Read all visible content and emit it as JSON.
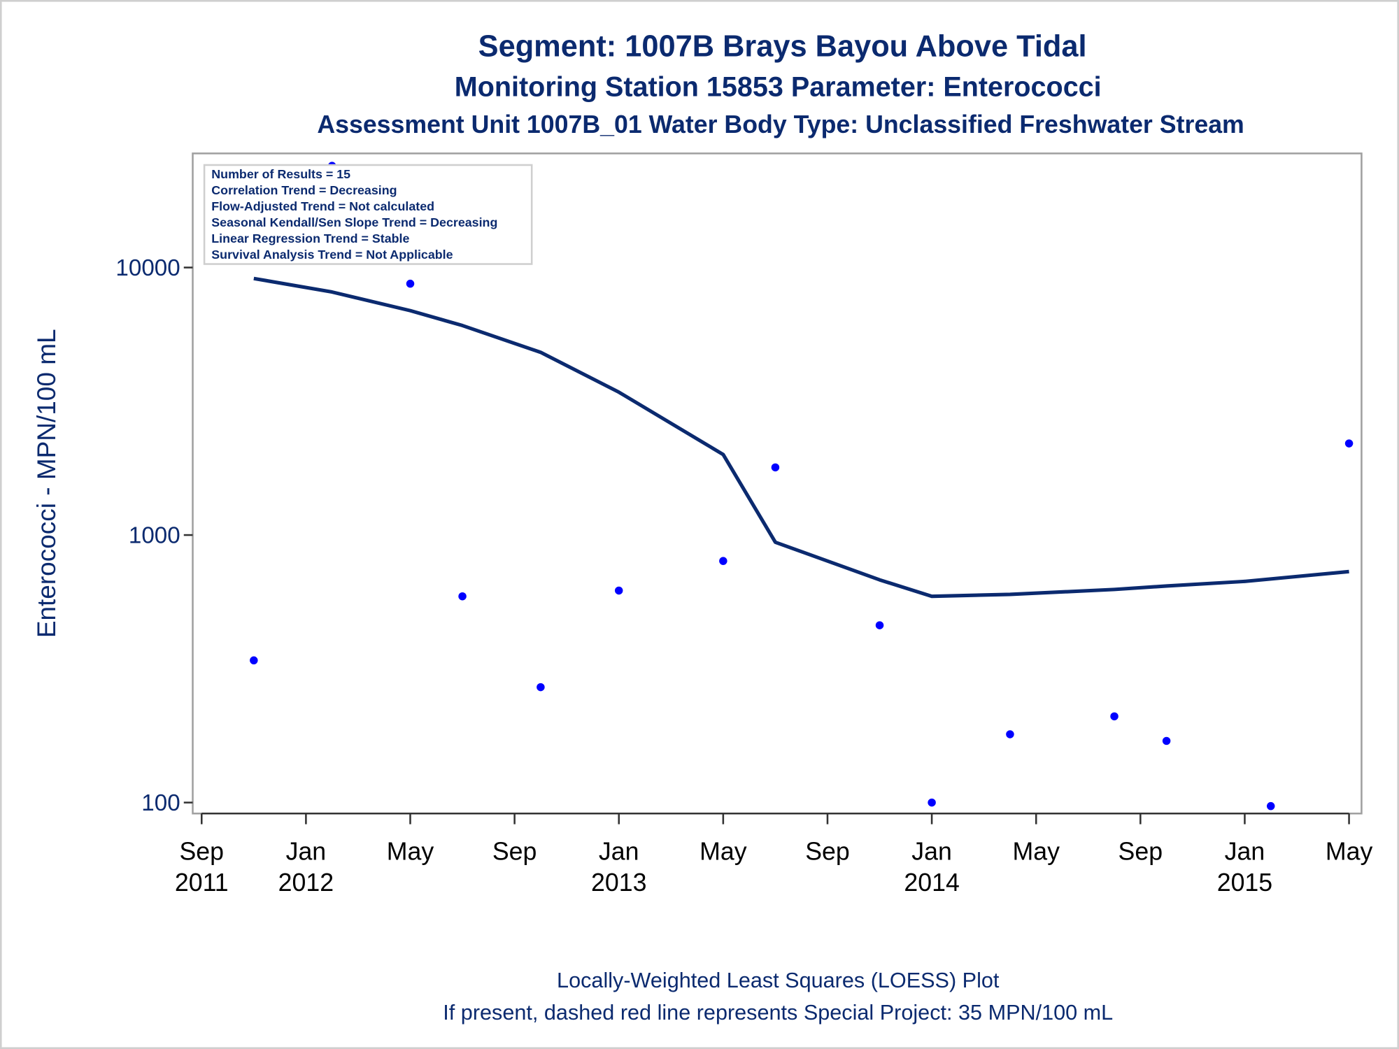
{
  "chart_data": {
    "type": "scatter",
    "title": "Segment: 1007B  Brays Bayou Above Tidal",
    "subtitle": "Monitoring Station 15853 Parameter: Enterococci",
    "subtitle2": "Assessment Unit 1007B_01   Water Body Type: Unclassified Freshwater Stream",
    "y_label": "Enterococci - MPN/100 mL",
    "footnotes": [
      "Locally-Weighted Least Squares (LOESS) Plot",
      "If present, dashed red line represents Special Project: 35 MPN/100 mL"
    ],
    "annotations": [
      "Number of Results = 15",
      "Correlation Trend = Decreasing",
      "Flow-Adjusted Trend = Not calculated",
      "Seasonal Kendall/Sen Slope Trend = Decreasing",
      "Linear Regression Trend = Stable",
      "Survival Analysis Trend = Not Applicable"
    ],
    "log_y": true,
    "ylim": [
      91,
      26700
    ],
    "yticks": [
      100,
      1000,
      10000
    ],
    "xlim": [
      "2011-09",
      "2015-05"
    ],
    "xticks": [
      {
        "value": "2011-09",
        "label": "Sep",
        "sublabel": "2011"
      },
      {
        "value": "2012-01",
        "label": "Jan",
        "sublabel": "2012"
      },
      {
        "value": "2012-05",
        "label": "May"
      },
      {
        "value": "2012-09",
        "label": "Sep"
      },
      {
        "value": "2013-01",
        "label": "Jan",
        "sublabel": "2013"
      },
      {
        "value": "2013-05",
        "label": "May"
      },
      {
        "value": "2013-09",
        "label": "Sep"
      },
      {
        "value": "2014-01",
        "label": "Jan",
        "sublabel": "2014"
      },
      {
        "value": "2014-05",
        "label": "May"
      },
      {
        "value": "2014-09",
        "label": "Sep"
      },
      {
        "value": "2015-01",
        "label": "Jan",
        "sublabel": "2015"
      },
      {
        "value": "2015-05",
        "label": "May"
      }
    ],
    "series": [
      {
        "type": "scatter",
        "color": "#0000ff",
        "x": [
          "2011-11",
          "2012-02",
          "2012-05",
          "2012-07",
          "2012-10",
          "2013-01",
          "2013-05",
          "2013-07",
          "2013-11",
          "2014-01",
          "2014-04",
          "2014-08",
          "2014-10",
          "2015-02",
          "2015-05"
        ],
        "values": [
          340,
          24000,
          8700,
          590,
          270,
          620,
          800,
          1790,
          460,
          100,
          180,
          210,
          170,
          97,
          2200
        ]
      },
      {
        "type": "line",
        "color": "#0b2a6f",
        "x": [
          "2011-11",
          "2012-02",
          "2012-05",
          "2012-07",
          "2012-10",
          "2013-01",
          "2013-05",
          "2013-07",
          "2013-11",
          "2014-01",
          "2014-04",
          "2014-08",
          "2014-10",
          "2015-01",
          "2015-05"
        ],
        "values": [
          9100,
          8100,
          6900,
          6070,
          4820,
          3420,
          2000,
          940,
          680,
          590,
          600,
          626,
          645,
          671,
          730
        ]
      }
    ]
  }
}
